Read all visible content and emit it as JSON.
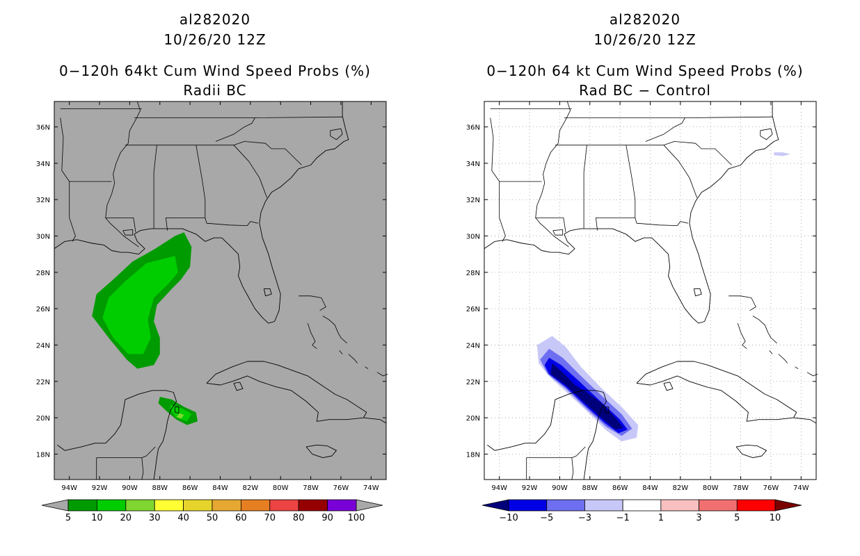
{
  "left_panel": {
    "storm_id": "al282020",
    "datetime": "10/26/20 12Z",
    "title": "0−120h 64kt Cum Wind Speed Probs (%)",
    "subtitle": "Radii BC",
    "background_color": "#a8a8a8",
    "colorbar": {
      "ticks": [
        "5",
        "10",
        "20",
        "30",
        "40",
        "50",
        "60",
        "70",
        "80",
        "90",
        "100"
      ],
      "colors": [
        "#009b00",
        "#00cd00",
        "#80d630",
        "#ffff33",
        "#e6d42c",
        "#e6a833",
        "#e67f22",
        "#ec4343",
        "#960000",
        "#7a00d8"
      ],
      "under_color": "#a8a8a8",
      "over_color": "#a8a8a8"
    }
  },
  "right_panel": {
    "storm_id": "al282020",
    "datetime": "10/26/20 12Z",
    "title": "0−120h 64 kt Cum Wind Speed Probs (%)",
    "subtitle": "Rad BC − Control",
    "background_color": "#ffffff",
    "colorbar": {
      "ticks": [
        "−10",
        "−5",
        "−3",
        "−1",
        "1",
        "3",
        "5",
        "10"
      ],
      "colors": [
        "#0000e6",
        "#6e6ef0",
        "#c8c8f8",
        "#ffffff",
        "#f8c0c0",
        "#f07070",
        "#ff0000"
      ],
      "under_color": "#00007a",
      "over_color": "#7a0000"
    }
  },
  "map": {
    "lat_labels": [
      "36N",
      "34N",
      "32N",
      "30N",
      "28N",
      "26N",
      "24N",
      "22N",
      "20N",
      "18N"
    ],
    "lon_labels": [
      "94W",
      "92W",
      "90W",
      "88W",
      "86W",
      "84W",
      "82W",
      "80W",
      "78W",
      "76W",
      "74W"
    ],
    "lat_values": [
      36,
      34,
      32,
      30,
      28,
      26,
      24,
      22,
      20,
      18
    ],
    "lon_values": [
      -94,
      -92,
      -90,
      -88,
      -86,
      -84,
      -82,
      -80,
      -78,
      -76,
      -74
    ],
    "extent": {
      "lon_min": -95,
      "lon_max": -73,
      "lat_min": 16.6,
      "lat_max": 37.4
    }
  },
  "probability_areas": {
    "left": [
      {
        "region": "Gulf of Mexico",
        "category": "5-10",
        "color": "#009b00"
      },
      {
        "region": "Gulf of Mexico",
        "category": "10-20",
        "color": "#00cd00"
      },
      {
        "region": "Yucatan Channel",
        "category": "5-10",
        "color": "#009b00"
      },
      {
        "region": "Yucatan Channel",
        "category": "10-20",
        "color": "#00cd00"
      },
      {
        "region": "Yucatan Channel",
        "category": "20-30",
        "color": "#80d630"
      }
    ],
    "right": [
      {
        "region": "Yucatan Channel",
        "category": "-3 to -1",
        "color": "#c8c8f8"
      },
      {
        "region": "Yucatan Channel",
        "category": "-5 to -3",
        "color": "#6e6ef0"
      },
      {
        "region": "Yucatan Channel",
        "category": "-10 to -5",
        "color": "#0000e6"
      },
      {
        "region": "Yucatan Channel",
        "category": "< -10",
        "color": "#00007a"
      },
      {
        "region": "off North Carolina",
        "category": "-3 to -1",
        "color": "#c8c8f8"
      }
    ]
  }
}
